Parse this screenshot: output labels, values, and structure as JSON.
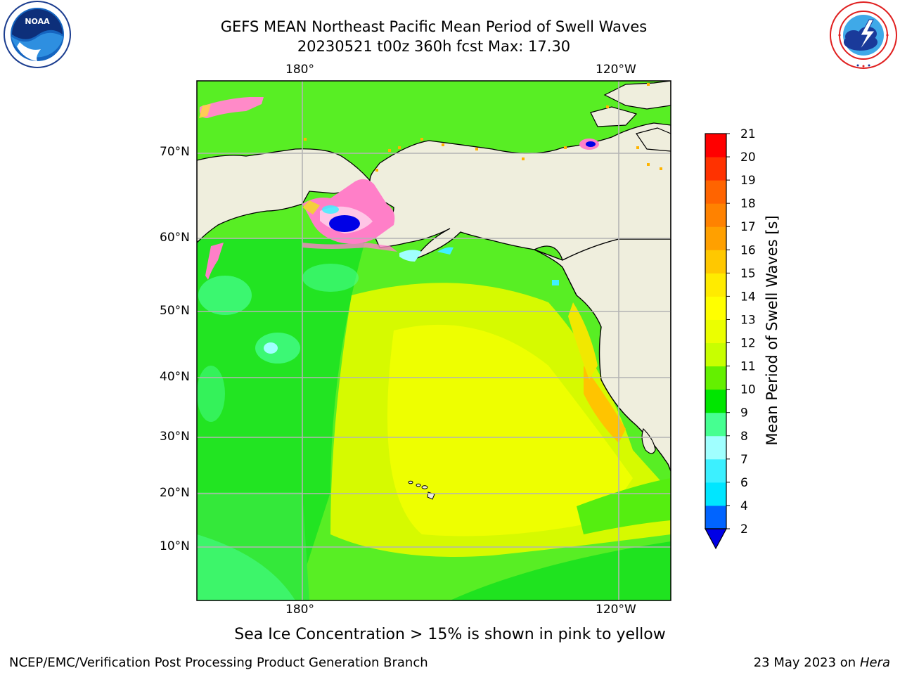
{
  "header": {
    "title_line1": "GEFS MEAN Northeast Pacific Mean Period of Swell Waves",
    "title_line2": "20230521 t00z 360h fcst   Max: 17.30"
  },
  "logos": {
    "left": {
      "name": "NOAA",
      "icon": "noaa-seal-icon"
    },
    "right": {
      "name": "NATIONAL WEATHER SERVICE",
      "icon": "nws-seal-icon"
    }
  },
  "map": {
    "projection": "Mercator",
    "lon_labels_top": [
      "180°",
      "120°W"
    ],
    "lon_labels_bottom": [
      "180°",
      "120°W"
    ],
    "lat_labels": [
      "70°N",
      "60°N",
      "50°N",
      "40°N",
      "30°N",
      "20°N",
      "10°N"
    ],
    "land_color": "#efeedd",
    "gridline_color": "#b4b4b4"
  },
  "colorbar": {
    "label": "Mean Period of Swell Waves [s]",
    "ticks": [
      "2",
      "4",
      "6",
      "7",
      "8",
      "9",
      "10",
      "11",
      "12",
      "13",
      "14",
      "15",
      "16",
      "17",
      "18",
      "19",
      "20",
      "21"
    ],
    "colors": [
      "#0064ff",
      "#00e6ff",
      "#3cf0ff",
      "#a0ffff",
      "#46ff91",
      "#00e600",
      "#64f000",
      "#c8ff00",
      "#ebff00",
      "#ffff00",
      "#ffeb00",
      "#ffc800",
      "#ffa000",
      "#ff8200",
      "#ff6400",
      "#ff3200",
      "#ff0000"
    ],
    "under_color": "#0000e6"
  },
  "notes": {
    "ice_note": "Sea Ice Concentration > 15% is shown in pink to yellow",
    "footer_left": "NCEP/EMC/Verification Post Processing Product Generation Branch",
    "footer_date": "23 May 2023 on",
    "footer_machine": "Hera"
  }
}
